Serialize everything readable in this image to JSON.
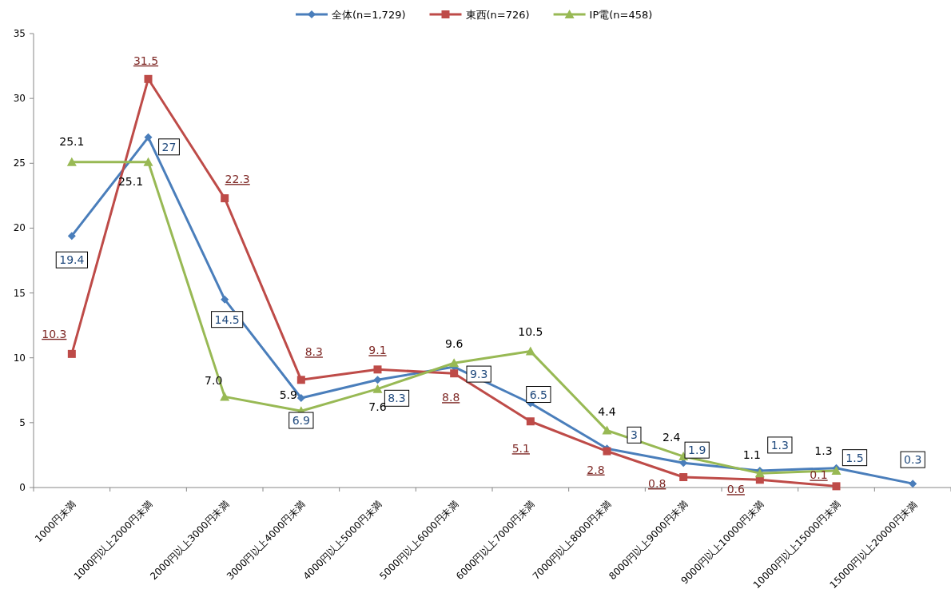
{
  "chart_data": {
    "type": "line",
    "categories": [
      "1000円未満",
      "1000円以上2000円未満",
      "2000円以上3000円未満",
      "3000円以上4000円未満",
      "4000円以上5000円未満",
      "5000円以上6000円未満",
      "6000円以上7000円未満",
      "7000円以上8000円未満",
      "8000円以上9000円未満",
      "9000円以上10000円未満",
      "10000円以上15000円未満",
      "15000円以上20000円未満"
    ],
    "series": [
      {
        "name": "全体(n=1,729)",
        "color": "#4a7ebb",
        "marker": "diamond",
        "values": [
          19.4,
          27,
          14.5,
          6.9,
          8.3,
          9.3,
          6.5,
          3,
          1.9,
          1.3,
          1.5,
          0.3
        ],
        "value_labels": [
          "19.4",
          "27",
          "14.5",
          "6.9",
          "8.3",
          "9.3",
          "6.5",
          "3",
          "1.9",
          "1.3",
          "1.5",
          "0.3"
        ]
      },
      {
        "name": "東西(n=726)",
        "color": "#be4b48",
        "marker": "square",
        "values": [
          10.3,
          31.5,
          22.3,
          8.3,
          9.1,
          8.8,
          5.1,
          2.8,
          0.8,
          0.6,
          0.1,
          null
        ],
        "value_labels": [
          "10.3",
          "31.5",
          "22.3",
          "8.3",
          "9.1",
          "8.8",
          "5.1",
          "2.8",
          "0.8",
          "0.6",
          "0.1",
          null
        ]
      },
      {
        "name": "IP電(n=458)",
        "color": "#98b954",
        "marker": "triangle",
        "values": [
          25.1,
          25.1,
          7.0,
          5.9,
          7.6,
          9.6,
          10.5,
          4.4,
          2.4,
          1.1,
          1.3,
          null
        ],
        "value_labels": [
          "25.1",
          "25.1",
          "7.0",
          "5.9",
          "7.6",
          "9.6",
          "10.5",
          "4.4",
          "2.4",
          "1.1",
          "1.3",
          null
        ]
      }
    ],
    "ylim": [
      0,
      35
    ],
    "yticks": [
      0,
      5,
      10,
      15,
      20,
      25,
      30,
      35
    ],
    "grid": false,
    "legend": "top",
    "line_style": "solid"
  }
}
